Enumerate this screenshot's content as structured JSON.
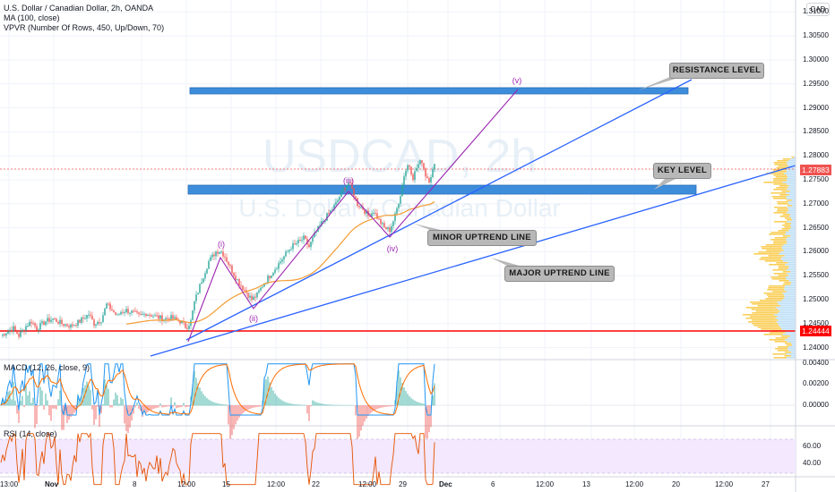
{
  "header": {
    "symbol_line": "U.S. Dollar / Canadian Dollar, 2h, OANDA",
    "ma_line": "MA (100, close)",
    "vpvr_line": "VPVR (Number Of Rows, 450, Up/Down, 70)"
  },
  "currency_badge": "CAD",
  "watermark": {
    "symbol": "USDCAD, 2h",
    "name": "U.S. Dollar / Canadian Dollar"
  },
  "price_axis": {
    "ticks": [
      "1.31000",
      "1.30500",
      "1.30000",
      "1.29500",
      "1.29000",
      "1.28500",
      "1.28000",
      "1.27500",
      "1.27000",
      "1.26500",
      "1.26000",
      "1.25500",
      "1.25000",
      "1.24500",
      "1.24000"
    ],
    "current_price": "1.27883",
    "horizontal_level": "1.24444"
  },
  "time_axis": [
    "13:00",
    "Nov",
    "8",
    "12:00",
    "15",
    "12:00",
    "22",
    "12:00",
    "29",
    "Dec",
    "6",
    "12:00",
    "13",
    "12:00",
    "20",
    "12:00",
    "27"
  ],
  "annotations": {
    "resistance": "RESISTANCE LEVEL",
    "key_level": "KEY LEVEL",
    "minor_uptrend": "MINOR UPTREND LINE",
    "major_uptrend": "MAJOR UPTREND LINE",
    "waves": [
      "(i)",
      "(ii)",
      "(iii)",
      "(iv)",
      "(v)"
    ]
  },
  "macd": {
    "label": "MACD (12, 26, close, 9)",
    "ticks": [
      "0.00400",
      "0.00200",
      "0.00000"
    ]
  },
  "rsi": {
    "label": "RSI (14, close)",
    "ticks": [
      "60.00",
      "40.00"
    ]
  },
  "colors": {
    "up": "#26a69a",
    "down": "#ef5350",
    "ma": "#f39c34",
    "zones": "#3d8ddb",
    "trend": "#2962ff",
    "wave": "#9c27b0",
    "level": "#ff0000",
    "vp": "#f9c53a",
    "vp_down": "#bfe0f6",
    "macd": "#2196f3",
    "signal": "#ff6d00",
    "rsi": "#e65100",
    "rsi_band": "#f3e8fd"
  },
  "chart_data": {
    "type": "candlestick",
    "pair": "USD/CAD",
    "timeframe": "2h",
    "ylim": [
      1.2375,
      1.3125
    ],
    "key_levels": {
      "resistance_zone": [
        1.2955,
        1.2962
      ],
      "key_zone": [
        1.2745,
        1.2758
      ],
      "support": 1.24444,
      "last": 1.27883
    },
    "anchors": [
      [
        0,
        1.2425
      ],
      [
        8,
        1.2435
      ],
      [
        14,
        1.244
      ],
      [
        20,
        1.2425
      ],
      [
        28,
        1.2445
      ],
      [
        34,
        1.2455
      ],
      [
        40,
        1.244
      ],
      [
        50,
        1.2455
      ],
      [
        58,
        1.246
      ],
      [
        68,
        1.245
      ],
      [
        78,
        1.2445
      ],
      [
        88,
        1.2455
      ],
      [
        98,
        1.247
      ],
      [
        104,
        1.245
      ],
      [
        112,
        1.2458
      ],
      [
        118,
        1.249
      ],
      [
        124,
        1.2478
      ],
      [
        130,
        1.2465
      ],
      [
        134,
        1.2475
      ],
      [
        140,
        1.2478
      ],
      [
        148,
        1.2472
      ],
      [
        155,
        1.2465
      ],
      [
        162,
        1.2472
      ],
      [
        168,
        1.2468
      ],
      [
        176,
        1.2463
      ],
      [
        182,
        1.246
      ],
      [
        190,
        1.2462
      ],
      [
        200,
        1.2455
      ],
      [
        207,
        1.2442
      ],
      [
        212,
        1.2455
      ],
      [
        216,
        1.2495
      ],
      [
        224,
        1.254
      ],
      [
        232,
        1.258
      ],
      [
        240,
        1.26
      ],
      [
        245,
        1.2603
      ],
      [
        250,
        1.259
      ],
      [
        258,
        1.256
      ],
      [
        266,
        1.2535
      ],
      [
        274,
        1.2515
      ],
      [
        280,
        1.25
      ],
      [
        286,
        1.251
      ],
      [
        292,
        1.253
      ],
      [
        300,
        1.255
      ],
      [
        308,
        1.257
      ],
      [
        316,
        1.259
      ],
      [
        324,
        1.261
      ],
      [
        332,
        1.262
      ],
      [
        338,
        1.2628
      ],
      [
        344,
        1.261
      ],
      [
        350,
        1.2635
      ],
      [
        358,
        1.266
      ],
      [
        366,
        1.268
      ],
      [
        374,
        1.27
      ],
      [
        382,
        1.273
      ],
      [
        388,
        1.2745
      ],
      [
        392,
        1.273
      ],
      [
        398,
        1.27
      ],
      [
        404,
        1.269
      ],
      [
        410,
        1.2675
      ],
      [
        416,
        1.2685
      ],
      [
        422,
        1.2665
      ],
      [
        428,
        1.265
      ],
      [
        434,
        1.2645
      ],
      [
        440,
        1.2675
      ],
      [
        446,
        1.272
      ],
      [
        450,
        1.276
      ],
      [
        455,
        1.2785
      ],
      [
        460,
        1.2755
      ],
      [
        465,
        1.278
      ],
      [
        470,
        1.279
      ],
      [
        474,
        1.276
      ],
      [
        478,
        1.275
      ],
      [
        482,
        1.277
      ],
      [
        486,
        1.2788
      ]
    ],
    "ma_period": 100
  }
}
